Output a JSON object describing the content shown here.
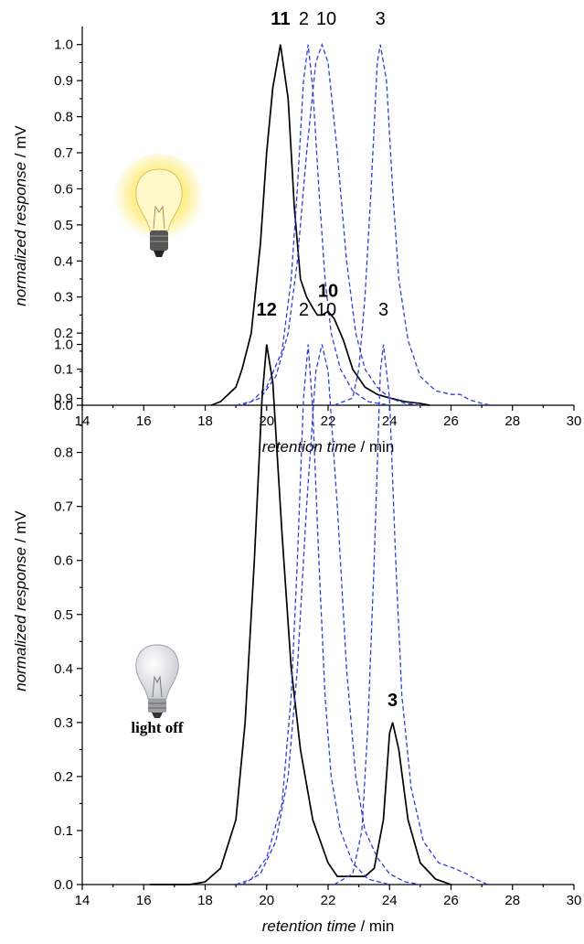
{
  "chart_data": [
    {
      "type": "line",
      "xlabel": "retention time / min",
      "ylabel": "normalized response / mV",
      "xlim": [
        14,
        30
      ],
      "xticks": [
        14,
        16,
        18,
        20,
        22,
        24,
        26,
        28,
        30
      ],
      "ylim": [
        0,
        1.05
      ],
      "yticks": [
        {
          "value": 0,
          "label": "0.0"
        },
        0.1,
        0.2,
        0.3,
        0.4,
        0.5,
        0.6,
        0.7,
        0.8,
        0.9,
        {
          "value": 1,
          "label": "1.0"
        }
      ],
      "series": [
        {
          "name": "11",
          "color": "#000000",
          "linestyle": "solid",
          "x": [
            18.2,
            18.5,
            19,
            19.2,
            19.5,
            19.8,
            20,
            20.2,
            20.45,
            20.7,
            20.9,
            21.1,
            21.3,
            21.5,
            21.65,
            21.8,
            22,
            22.2,
            22.5,
            22.8,
            23.2,
            23.6,
            24,
            24.5,
            25,
            25.3
          ],
          "values": [
            0,
            0.01,
            0.05,
            0.1,
            0.2,
            0.45,
            0.7,
            0.88,
            1,
            0.85,
            0.55,
            0.35,
            0.3,
            0.27,
            0.25,
            0.25,
            0.26,
            0.24,
            0.18,
            0.1,
            0.05,
            0.03,
            0.02,
            0.01,
            0.005,
            0
          ]
        },
        {
          "name": "2",
          "color": "#2f3fd8",
          "linestyle": "dashed",
          "x": [
            19,
            19.5,
            20,
            20.5,
            20.8,
            21,
            21.2,
            21.35,
            21.5,
            21.7,
            21.9,
            22.1,
            22.4,
            22.8,
            23.3,
            24
          ],
          "values": [
            0,
            0.01,
            0.05,
            0.15,
            0.35,
            0.6,
            0.9,
            1,
            0.88,
            0.6,
            0.35,
            0.2,
            0.1,
            0.04,
            0.01,
            0
          ]
        },
        {
          "name": "10",
          "color": "#2f3fd8",
          "linestyle": "dashed",
          "x": [
            19.2,
            19.8,
            20.3,
            20.7,
            21,
            21.3,
            21.6,
            21.8,
            22,
            22.3,
            22.6,
            22.9,
            23.2,
            23.6,
            24,
            24.5,
            25
          ],
          "values": [
            0,
            0.02,
            0.08,
            0.2,
            0.4,
            0.7,
            0.95,
            1,
            0.95,
            0.7,
            0.4,
            0.2,
            0.1,
            0.05,
            0.02,
            0.005,
            0
          ]
        },
        {
          "name": "3",
          "color": "#2f3fd8",
          "linestyle": "dashed",
          "x": [
            22.2,
            22.8,
            23,
            23.2,
            23.4,
            23.6,
            23.7,
            23.9,
            24.1,
            24.3,
            24.6,
            25,
            25.5,
            26,
            26.3,
            26.6,
            27,
            27.3
          ],
          "values": [
            0,
            0.02,
            0.1,
            0.3,
            0.6,
            0.95,
            1,
            0.9,
            0.6,
            0.35,
            0.18,
            0.08,
            0.04,
            0.03,
            0.03,
            0.015,
            0.005,
            0
          ]
        }
      ],
      "annotations": [
        {
          "text": "10",
          "x": 22.0,
          "y": 0.3
        }
      ]
    },
    {
      "type": "line",
      "xlabel": "retention time / min",
      "ylabel": "normalized response / mV",
      "xlim": [
        14,
        30
      ],
      "xticks": [
        14,
        16,
        18,
        20,
        22,
        24,
        26,
        28,
        30
      ],
      "ylim": [
        0,
        1.05
      ],
      "yticks": [
        {
          "value": 0,
          "label": "0.0"
        },
        0.1,
        0.2,
        0.3,
        0.4,
        0.5,
        0.6,
        0.7,
        0.8,
        0.9,
        {
          "value": 1,
          "label": "1.0"
        }
      ],
      "series": [
        {
          "name": "12",
          "color": "#000000",
          "linestyle": "solid",
          "x": [
            16.2,
            17.5,
            18,
            18.5,
            19,
            19.3,
            19.6,
            19.85,
            20,
            20.2,
            20.5,
            20.8,
            21.1,
            21.5,
            22,
            22.3,
            23.2,
            23.5,
            23.8,
            24,
            24.1,
            24.3,
            24.6,
            25,
            25.5,
            26
          ],
          "values": [
            0,
            0,
            0.005,
            0.03,
            0.12,
            0.3,
            0.6,
            0.9,
            1,
            0.93,
            0.65,
            0.4,
            0.25,
            0.12,
            0.04,
            0.015,
            0.015,
            0.03,
            0.12,
            0.28,
            0.3,
            0.25,
            0.12,
            0.04,
            0.01,
            0
          ]
        },
        {
          "name": "2",
          "color": "#2f3fd8",
          "linestyle": "dashed",
          "x": [
            19,
            19.5,
            20,
            20.5,
            20.8,
            21,
            21.2,
            21.35,
            21.5,
            21.7,
            21.9,
            22.1,
            22.4,
            22.8,
            23.3,
            24
          ],
          "values": [
            0,
            0.01,
            0.05,
            0.15,
            0.35,
            0.6,
            0.9,
            1,
            0.88,
            0.6,
            0.35,
            0.2,
            0.1,
            0.04,
            0.01,
            0
          ]
        },
        {
          "name": "10",
          "color": "#2f3fd8",
          "linestyle": "dashed",
          "x": [
            19.2,
            19.8,
            20.3,
            20.7,
            21,
            21.3,
            21.6,
            21.8,
            22,
            22.3,
            22.6,
            22.9,
            23.2,
            23.6,
            24,
            24.5,
            25
          ],
          "values": [
            0,
            0.02,
            0.08,
            0.2,
            0.4,
            0.7,
            0.95,
            1,
            0.95,
            0.7,
            0.4,
            0.2,
            0.1,
            0.05,
            0.02,
            0.005,
            0
          ]
        },
        {
          "name": "3",
          "color": "#2f3fd8",
          "linestyle": "dashed",
          "x": [
            22.2,
            22.8,
            23.1,
            23.3,
            23.5,
            23.7,
            23.8,
            24,
            24.2,
            24.4,
            24.7,
            25.1,
            25.6,
            26.1,
            26.5,
            26.8,
            27.2
          ],
          "values": [
            0,
            0.02,
            0.1,
            0.3,
            0.6,
            0.95,
            1,
            0.9,
            0.6,
            0.35,
            0.18,
            0.08,
            0.04,
            0.03,
            0.02,
            0.01,
            0
          ]
        }
      ],
      "annotations": [
        {
          "text": "3",
          "x": 24.1,
          "y": 0.33
        }
      ],
      "icon_label": "light off"
    }
  ]
}
